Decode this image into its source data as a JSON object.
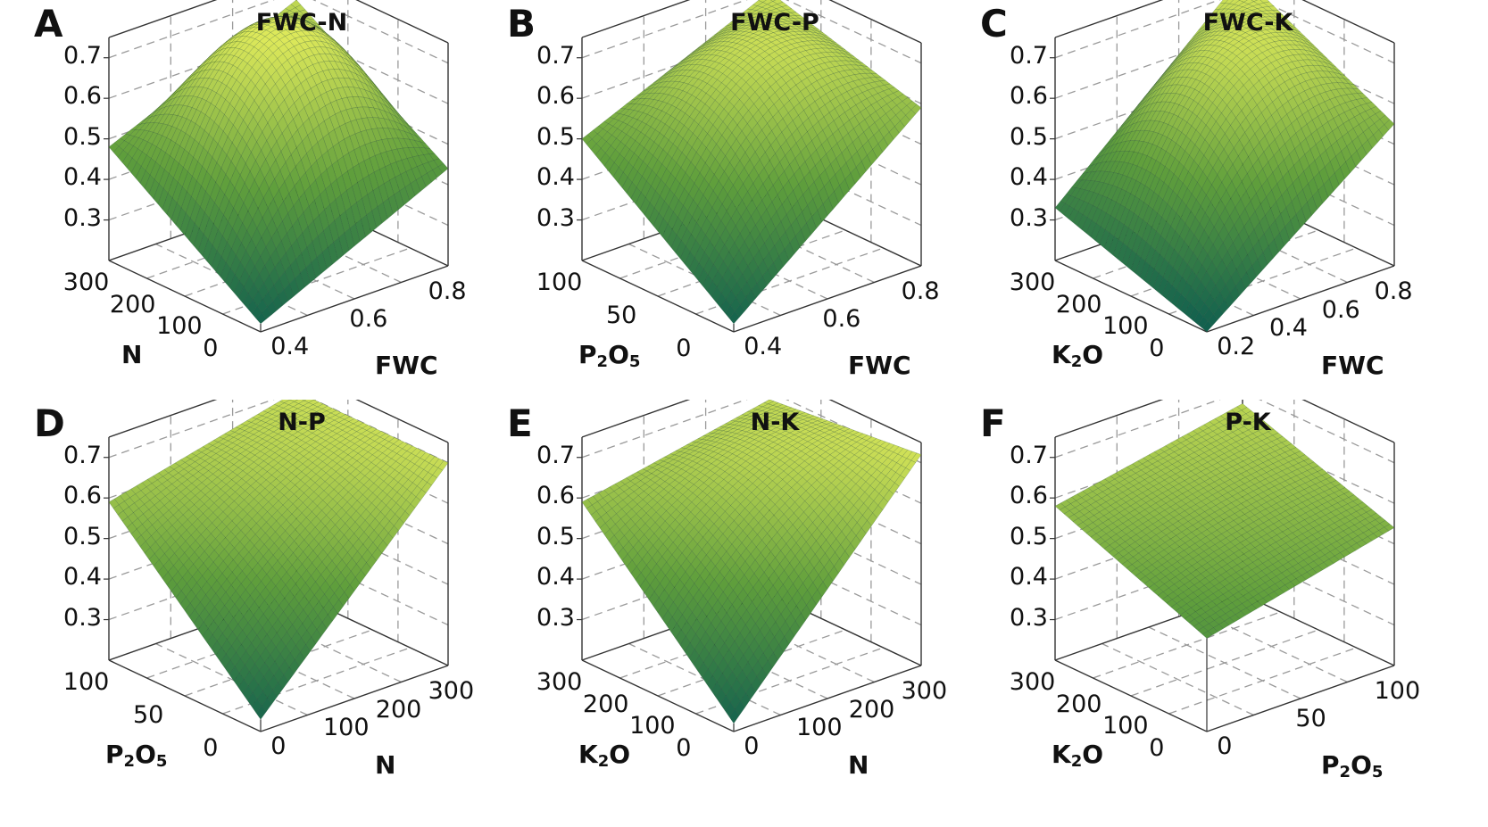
{
  "colors": {
    "surface_low": "#0f5e4f",
    "surface_mid": "#5f9e3c",
    "surface_high": "#dce85a",
    "grid": "#9a9a9a",
    "box": "#333333"
  },
  "z_ticks": [
    "0.7",
    "0.6",
    "0.5",
    "0.4",
    "0.3"
  ],
  "chart_data": [
    {
      "type": "surface3d",
      "label": "A",
      "title": "FWC-N",
      "left_axis": {
        "name": "N",
        "ticks": [
          "300",
          "200",
          "100",
          "0"
        ],
        "range": [
          0,
          300
        ]
      },
      "right_axis": {
        "name": "FWC",
        "ticks": [
          "0.4",
          "0.6",
          "0.8"
        ],
        "range": [
          0.3,
          0.8
        ]
      },
      "zlim": [
        0.2,
        0.75
      ],
      "corners": {
        "left_back": 0.48,
        "back": 0.68,
        "right_front": 0.44,
        "front": 0.22,
        "center": 0.73
      }
    },
    {
      "type": "surface3d",
      "label": "B",
      "title": "FWC-P",
      "left_axis": {
        "name": "P2O5",
        "sub": "2",
        "sub2": "5",
        "ticks": [
          "100",
          "50",
          "0"
        ],
        "range": [
          0,
          120
        ]
      },
      "right_axis": {
        "name": "FWC",
        "ticks": [
          "0.4",
          "0.6",
          "0.8"
        ],
        "range": [
          0.3,
          0.8
        ]
      },
      "zlim": [
        0.2,
        0.75
      ],
      "corners": {
        "left_back": 0.5,
        "back": 0.7,
        "right_front": 0.59,
        "front": 0.22,
        "center": 0.66
      }
    },
    {
      "type": "surface3d",
      "label": "C",
      "title": "FWC-K",
      "left_axis": {
        "name": "K2O",
        "ticks": [
          "300",
          "200",
          "100",
          "0"
        ],
        "range": [
          0,
          300
        ]
      },
      "right_axis": {
        "name": "FWC",
        "ticks": [
          "0.2",
          "0.4",
          "0.6",
          "0.8"
        ],
        "range": [
          0.15,
          0.8
        ]
      },
      "zlim": [
        0.2,
        0.75
      ],
      "corners": {
        "left_back": 0.33,
        "back": 0.74,
        "right_front": 0.55,
        "front": 0.2,
        "center": 0.66
      }
    },
    {
      "type": "surface3d",
      "label": "D",
      "title": "N-P",
      "left_axis": {
        "name": "P2O5",
        "ticks": [
          "100",
          "50",
          "0"
        ],
        "range": [
          0,
          120
        ]
      },
      "right_axis": {
        "name": "N",
        "ticks": [
          "0",
          "100",
          "200",
          "300"
        ],
        "range": [
          0,
          300
        ]
      },
      "zlim": [
        0.2,
        0.75
      ],
      "corners": {
        "left_back": 0.59,
        "back": 0.7,
        "right_front": 0.7,
        "front": 0.23,
        "center": 0.6
      }
    },
    {
      "type": "surface3d",
      "label": "E",
      "title": "N-K",
      "left_axis": {
        "name": "K2O",
        "ticks": [
          "300",
          "200",
          "100",
          "0"
        ],
        "range": [
          0,
          300
        ]
      },
      "right_axis": {
        "name": "N",
        "ticks": [
          "0",
          "100",
          "200",
          "300"
        ],
        "range": [
          0,
          300
        ]
      },
      "zlim": [
        0.2,
        0.75
      ],
      "corners": {
        "left_back": 0.59,
        "back": 0.68,
        "right_front": 0.72,
        "front": 0.22,
        "center": 0.62
      }
    },
    {
      "type": "surface3d",
      "label": "F",
      "title": "P-K",
      "left_axis": {
        "name": "K2O",
        "ticks": [
          "300",
          "200",
          "100",
          "0"
        ],
        "range": [
          0,
          300
        ]
      },
      "right_axis": {
        "name": "P2O5",
        "ticks": [
          "0",
          "50",
          "100"
        ],
        "range": [
          0,
          120
        ]
      },
      "zlim": [
        0.2,
        0.75
      ],
      "corners": {
        "left_back": 0.58,
        "back": 0.67,
        "right_front": 0.54,
        "front": 0.43,
        "center": 0.57
      }
    }
  ]
}
